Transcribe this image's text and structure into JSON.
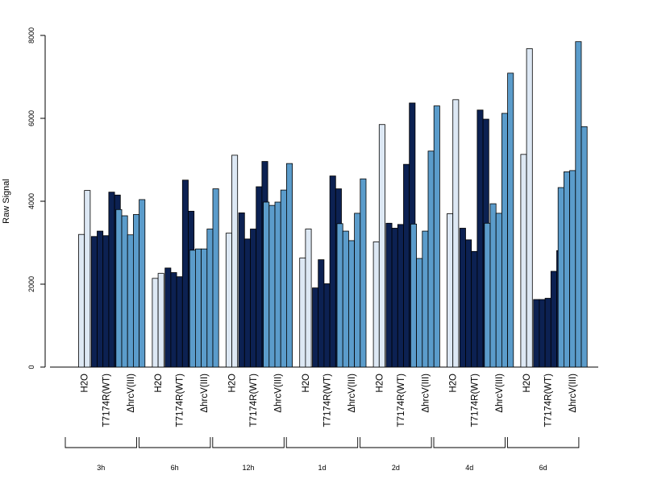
{
  "chart_data": {
    "type": "bar",
    "ylabel": "Raw Signal",
    "xlabel": "",
    "ylim": [
      0,
      8000
    ],
    "y_ticks": [
      0,
      2000,
      4000,
      6000,
      8000
    ],
    "conditions": [
      "H2O",
      "T7174R(WT)",
      "ΔhrcV(III)"
    ],
    "condition_colors": [
      "#dde8f4",
      "#0c2152",
      "#5b9ccb"
    ],
    "timepoints": [
      "3h",
      "6h",
      "12h",
      "1d",
      "2d",
      "4d",
      "6d"
    ],
    "bar_values": [
      [
        [
          3200,
          4260
        ],
        [
          3150,
          3280,
          3170,
          4220,
          4150
        ],
        [
          3800,
          3650,
          3190,
          3680,
          4040
        ]
      ],
      [
        [
          2140,
          2260
        ],
        [
          2390,
          2280,
          2180,
          4510,
          3760
        ],
        [
          2820,
          2850,
          2850,
          3330,
          4300
        ]
      ],
      [
        [
          3230,
          5110
        ],
        [
          3720,
          3090,
          3330,
          4350,
          4960
        ],
        [
          3980,
          3900,
          3980,
          4270,
          4910
        ]
      ],
      [
        [
          2630,
          3330
        ],
        [
          1910,
          2590,
          2010,
          4610,
          4300
        ],
        [
          3460,
          3280,
          3050,
          3710,
          4540
        ]
      ],
      [
        [
          3020,
          5850
        ],
        [
          3470,
          3350,
          3440,
          4890,
          6370
        ],
        [
          3450,
          2620,
          3280,
          5210,
          6300
        ]
      ],
      [
        [
          3700,
          6450
        ],
        [
          3350,
          3070,
          2790,
          6200,
          5980
        ],
        [
          3470,
          3940,
          3710,
          6120,
          7090
        ]
      ],
      [
        [
          5130,
          7680
        ],
        [
          1630,
          1630,
          1660,
          2310,
          2810
        ],
        [
          4330,
          4710,
          4740,
          7850,
          5800
        ]
      ]
    ]
  }
}
